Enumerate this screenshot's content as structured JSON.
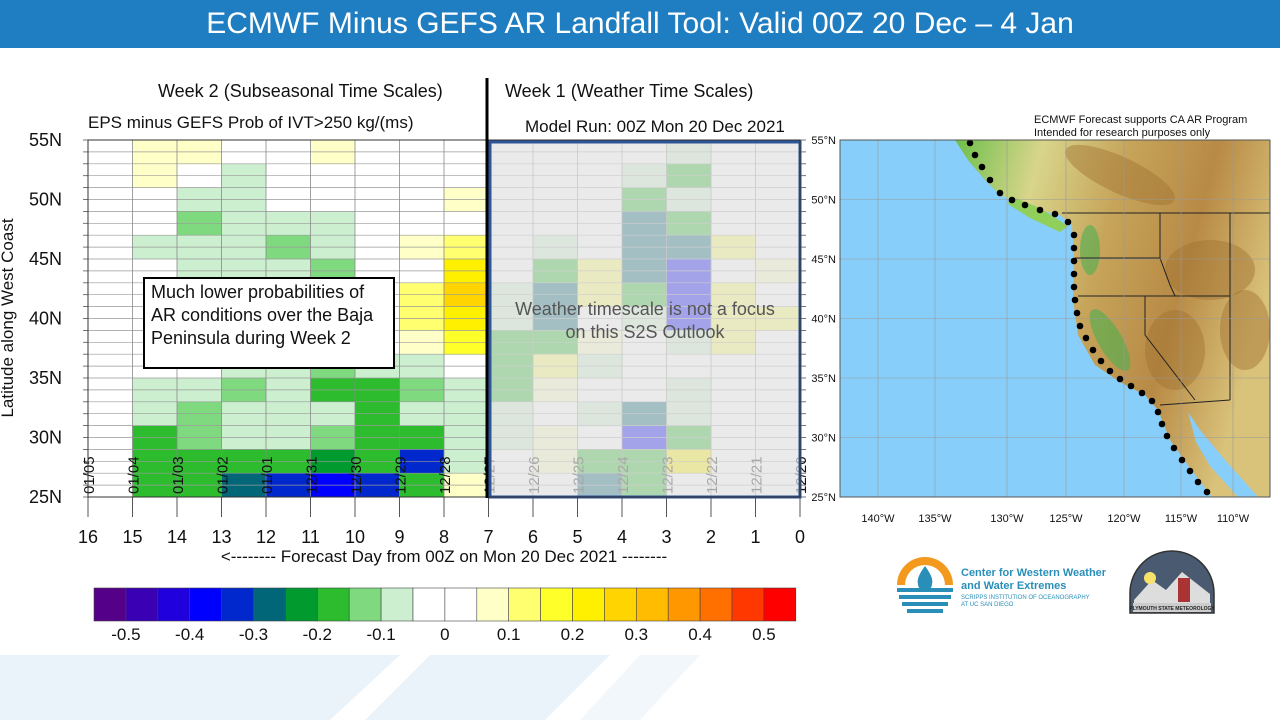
{
  "title": "ECMWF Minus GEFS AR Landfall Tool: Valid 00Z 20 Dec – 4 Jan",
  "headers": {
    "week2": "Week 2 (Subseasonal Time Scales)",
    "week1": "Week 1 (Weather Time Scales)",
    "subtitle": "EPS minus GEFS Prob of IVT>250 kg/(ms)",
    "model_run": "Model Run: 00Z Mon 20 Dec 2021"
  },
  "annotations": {
    "baja_note": "Much lower probabilities of AR conditions over the Baja Peninsula during Week 2",
    "weather_note_line1": "Weather timescale is not a focus",
    "weather_note_line2": "on this S2S Outlook"
  },
  "map": {
    "disclaimer_line1": "ECMWF Forecast supports CA AR Program",
    "disclaimer_line2": "Intended for research purposes only",
    "lat_labels": [
      "55°N",
      "50°N",
      "45°N",
      "40°N",
      "35°N",
      "30°N",
      "25°N"
    ],
    "lon_labels": [
      "140°W",
      "135°W",
      "130°W",
      "125°W",
      "120°W",
      "115°W",
      "110°W"
    ]
  },
  "logos": {
    "cw3e_line1": "Center for Western Weather",
    "cw3e_line2": "and Water Extremes",
    "cw3e_line3": "SCRIPPS INSTITUTION OF OCEANOGRAPHY",
    "cw3e_line4": "AT UC SAN DIEGO",
    "plymouth": "PLYMOUTH STATE METEOROLOGY"
  },
  "chart_data": {
    "type": "heatmap",
    "title": "EPS minus GEFS Prob of IVT>250 kg/(ms)",
    "xlabel": "<-------- Forecast Day from 00Z on Mon 20 Dec 2021 --------",
    "ylabel": "Latitude along West Coast",
    "x_ticks": [
      16,
      15,
      14,
      13,
      12,
      11,
      10,
      9,
      8,
      7,
      6,
      5,
      4,
      3,
      2,
      1,
      0
    ],
    "x_range": [
      16,
      0
    ],
    "date_labels": [
      "01/05",
      "01/04",
      "01/03",
      "01/02",
      "01/01",
      "12/31",
      "12/30",
      "12/29",
      "12/28",
      "12/27",
      "12/26",
      "12/25",
      "12/24",
      "12/23",
      "12/22",
      "12/21",
      "12/20"
    ],
    "y_ticks": [
      "55N",
      "50N",
      "45N",
      "40N",
      "35N",
      "30N",
      "25N"
    ],
    "y_range": [
      25,
      55
    ],
    "grid_columns_day_start": [
      16,
      15,
      14,
      13,
      12,
      11,
      10,
      9,
      8,
      7,
      6,
      5,
      4,
      3,
      2,
      1
    ],
    "grid_rows_lat_top": [
      55,
      53,
      51,
      49,
      47,
      45,
      43,
      41,
      39,
      37,
      35,
      33,
      31,
      29,
      27
    ],
    "values": [
      [
        0,
        0.05,
        0.05,
        0,
        0,
        0.05,
        0,
        0,
        0,
        0,
        0,
        0,
        0,
        -0.1,
        0,
        0
      ],
      [
        0,
        0.05,
        0,
        -0.1,
        0,
        0,
        0,
        0,
        0,
        0,
        0,
        0,
        -0.1,
        -0.2,
        0,
        0
      ],
      [
        0,
        -0.05,
        -0.1,
        -0.1,
        -0.05,
        -0.05,
        0,
        0,
        0.05,
        0,
        0,
        0,
        -0.2,
        -0.1,
        0,
        0
      ],
      [
        0,
        -0.05,
        -0.15,
        -0.1,
        -0.1,
        -0.1,
        -0.05,
        0,
        0,
        0,
        0,
        0,
        -0.3,
        -0.2,
        0,
        0
      ],
      [
        0,
        -0.1,
        -0.1,
        -0.1,
        -0.15,
        -0.1,
        -0.05,
        0.05,
        0.1,
        0,
        -0.1,
        0,
        -0.3,
        -0.3,
        0.1,
        0
      ],
      [
        0,
        -0.05,
        -0.1,
        -0.1,
        -0.1,
        -0.15,
        -0.05,
        0,
        0.2,
        0,
        -0.2,
        0.1,
        -0.3,
        -0.4,
        0,
        0.05
      ],
      [
        0,
        -0.05,
        0,
        0,
        -0.1,
        -0.1,
        0,
        0.1,
        0.25,
        -0.1,
        -0.3,
        0.1,
        -0.2,
        -0.4,
        0.1,
        0
      ],
      [
        0,
        0,
        0,
        0,
        0,
        0,
        -0.05,
        0.1,
        0.2,
        -0.1,
        -0.3,
        0,
        -0.1,
        -0.4,
        0.1,
        0.1
      ],
      [
        0,
        -0.05,
        0,
        0,
        0,
        0,
        0,
        0.05,
        0.15,
        -0.2,
        -0.2,
        0.05,
        0,
        -0.1,
        0.1,
        0
      ],
      [
        0,
        -0.05,
        -0.05,
        -0.1,
        -0.1,
        -0.15,
        -0.1,
        -0.1,
        0,
        -0.2,
        0.1,
        -0.1,
        0,
        0,
        0,
        0
      ],
      [
        0,
        -0.1,
        -0.1,
        -0.15,
        -0.1,
        -0.2,
        -0.2,
        -0.15,
        -0.1,
        -0.2,
        0.05,
        0,
        0,
        -0.1,
        0,
        0
      ],
      [
        0,
        -0.1,
        -0.15,
        -0.1,
        -0.1,
        -0.1,
        -0.2,
        -0.1,
        -0.1,
        -0.1,
        0,
        -0.1,
        -0.3,
        -0.1,
        0,
        0
      ],
      [
        0,
        -0.2,
        -0.15,
        -0.1,
        -0.1,
        -0.15,
        -0.2,
        -0.2,
        -0.1,
        -0.1,
        0.05,
        0,
        -0.4,
        -0.2,
        0,
        0
      ],
      [
        0,
        -0.2,
        -0.2,
        -0.2,
        -0.2,
        -0.25,
        -0.2,
        -0.35,
        -0.1,
        0,
        0.05,
        -0.2,
        -0.2,
        0.2,
        0,
        0
      ],
      [
        0,
        -0.2,
        -0.2,
        -0.3,
        -0.35,
        -0.4,
        -0.35,
        -0.2,
        0.05,
        0,
        0,
        -0.3,
        -0.2,
        0,
        0,
        0
      ]
    ],
    "colorbar": {
      "tick_labels": [
        "-0.5",
        "-0.4",
        "-0.3",
        "-0.2",
        "-0.1",
        "0",
        "0.1",
        "0.2",
        "0.3",
        "0.4",
        "0.5"
      ],
      "colors": [
        "#550088",
        "#3a00b4",
        "#2000dc",
        "#0000ff",
        "#0028cc",
        "#006678",
        "#009a2e",
        "#2cbc2e",
        "#7fd97f",
        "#ccefd0",
        "#ffffff",
        "#ffffff",
        "#ffffc8",
        "#ffff70",
        "#ffff2a",
        "#fff000",
        "#ffd400",
        "#ffbc00",
        "#ff9800",
        "#ff7000",
        "#ff3800",
        "#ff0000"
      ]
    }
  }
}
